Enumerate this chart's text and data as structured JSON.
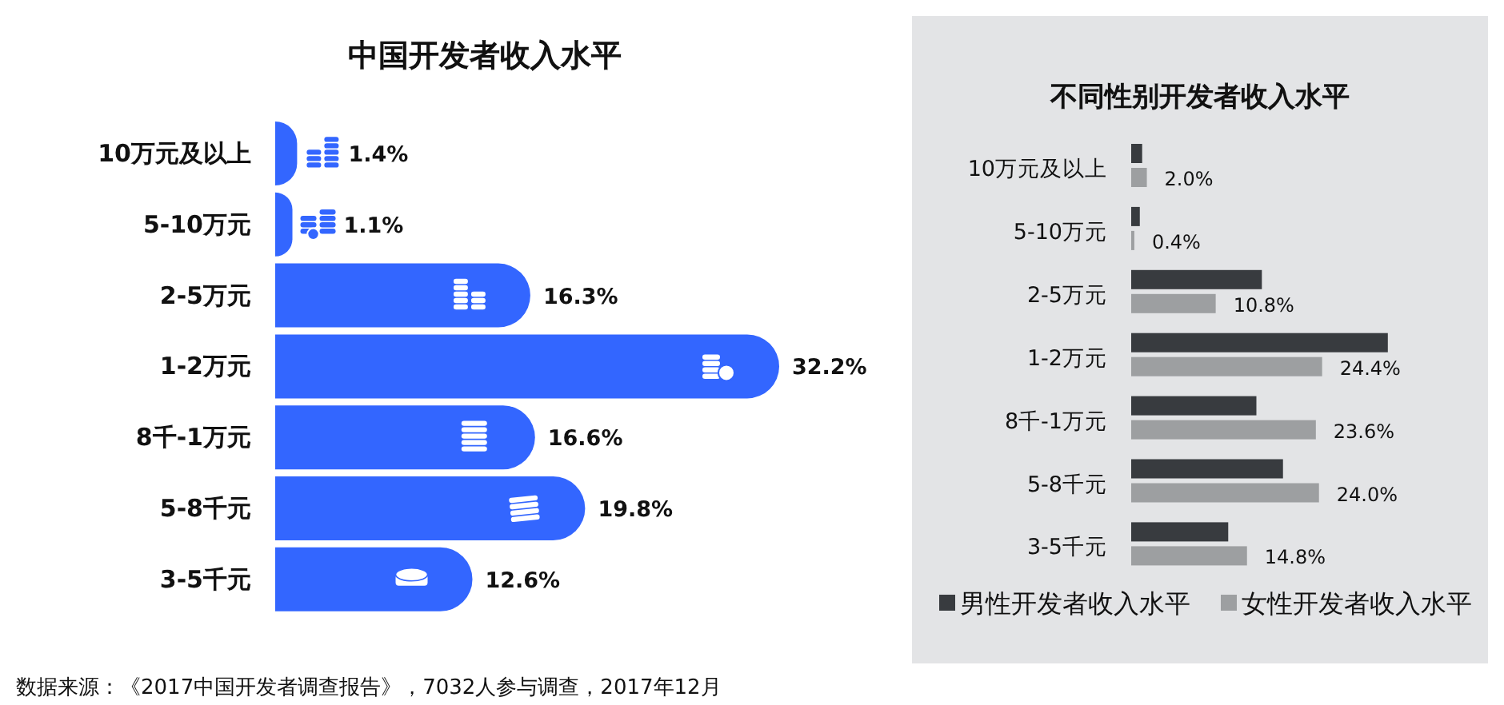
{
  "chart_data": [
    {
      "type": "bar",
      "orientation": "horizontal",
      "title": "中国开发者收入水平",
      "categories": [
        "10万元及以上",
        "5-10万元",
        "2-5万元",
        "1-2万元",
        "8千-1万元",
        "5-8千元",
        "3-5千元"
      ],
      "values": [
        1.4,
        1.1,
        16.3,
        32.2,
        16.6,
        19.8,
        12.6
      ],
      "color": "#3366ff",
      "value_labels": [
        "1.4%",
        "1.1%",
        "16.3%",
        "32.2%",
        "16.6%",
        "19.8%",
        "12.6%"
      ],
      "annotations": [
        "数据来源：《2017中国开发者调查报告》，7032人参与调查，2017年12月"
      ]
    },
    {
      "type": "bar",
      "orientation": "horizontal",
      "title": "不同性别开发者收入水平",
      "categories": [
        "10万元及以上",
        "5-10万元",
        "2-5万元",
        "1-2万元",
        "8千-1万元",
        "5-8千元",
        "3-5千元"
      ],
      "series": [
        {
          "name": "男性开发者收入水平",
          "color": "#383b3f",
          "values": [
            1.4,
            1.1,
            16.7,
            32.8,
            16.0,
            19.4,
            12.4
          ]
        },
        {
          "name": "女性开发者收入水平",
          "color": "#9d9fa1",
          "values": [
            2.0,
            0.4,
            10.8,
            24.4,
            23.6,
            24.0,
            14.8
          ],
          "value_labels": [
            "2.0%",
            "0.4%",
            "10.8%",
            "24.4%",
            "23.6%",
            "24.0%",
            "14.8%"
          ]
        }
      ],
      "legend": "bottom"
    }
  ]
}
